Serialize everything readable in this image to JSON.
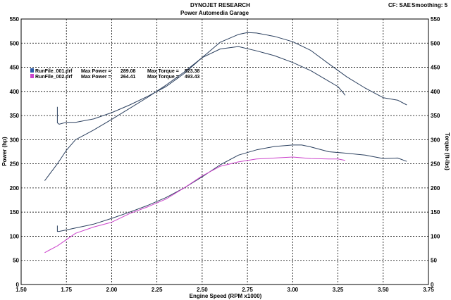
{
  "header": {
    "title": "DYNOJET RESEARCH",
    "subtitle": "Power Automedia Garage",
    "correction": "CF: SAE",
    "smoothing": "Smoothing: 5"
  },
  "chart_data": {
    "type": "line",
    "xlabel": "Engine Speed (RPM x1000)",
    "ylabel_left": "Power (hp)",
    "ylabel_right": "Torque (ft-lbs)",
    "xlim": [
      1.5,
      3.75
    ],
    "ylim": [
      0,
      550
    ],
    "xticks": [
      "1.50",
      "1.75",
      "2.00",
      "2.25",
      "2.50",
      "2.75",
      "3.00",
      "3.25",
      "3.50",
      "3.75"
    ],
    "yticks": [
      "0",
      "50",
      "100",
      "150",
      "200",
      "250",
      "300",
      "350",
      "400",
      "450",
      "500",
      "550"
    ],
    "grid": true,
    "legend_position": "top-left",
    "legend": [
      {
        "file": "RunFile_001.drf",
        "power_label": "Max Power =",
        "power": "289.08",
        "torque_label": "Max Torque =",
        "torque": "523.38",
        "color": "#2a3f5e"
      },
      {
        "file": "RunFile_002.drf",
        "power_label": "Max Power =",
        "power": "264.41",
        "torque_label": "Max Torque =",
        "torque": "493.43",
        "color": "#cc44cc"
      }
    ],
    "series": [
      {
        "name": "RunFile_001.drf",
        "measure": "Torque",
        "color": "#2a3f5e",
        "x": [
          1.7,
          1.7,
          1.71,
          1.75,
          1.8,
          1.9,
          2.0,
          2.1,
          2.2,
          2.3,
          2.4,
          2.5,
          2.6,
          2.7,
          2.75,
          2.8,
          2.9,
          3.0,
          3.1,
          3.2,
          3.3,
          3.4,
          3.5,
          3.58,
          3.63
        ],
        "y": [
          368,
          335,
          332,
          336,
          336,
          343,
          356,
          372,
          390,
          410,
          437,
          470,
          502,
          518,
          522,
          521,
          514,
          503,
          485,
          457,
          430,
          407,
          387,
          382,
          372
        ]
      },
      {
        "name": "RunFile_002.drf",
        "measure": "Torque",
        "color": "#2a3f5e",
        "x": [
          1.63,
          1.65,
          1.7,
          1.75,
          1.8,
          1.9,
          2.0,
          2.1,
          2.2,
          2.3,
          2.4,
          2.5,
          2.6,
          2.7,
          2.8,
          2.9,
          3.0,
          3.1,
          3.2,
          3.25,
          3.28,
          3.29
        ],
        "y": [
          215,
          225,
          250,
          278,
          300,
          320,
          342,
          365,
          388,
          413,
          440,
          470,
          488,
          493,
          484,
          474,
          460,
          443,
          421,
          410,
          397,
          392
        ]
      },
      {
        "name": "RunFile_001.drf",
        "measure": "Power",
        "color": "#2a3f5e",
        "x": [
          1.7,
          1.7,
          1.71,
          1.75,
          1.8,
          1.9,
          2.0,
          2.1,
          2.2,
          2.3,
          2.4,
          2.5,
          2.6,
          2.7,
          2.8,
          2.9,
          3.0,
          3.05,
          3.1,
          3.2,
          3.3,
          3.4,
          3.5,
          3.58,
          3.63
        ],
        "y": [
          122,
          110,
          110,
          113,
          117,
          125,
          137,
          150,
          164,
          180,
          200,
          223,
          248,
          268,
          279,
          286,
          289,
          289,
          285,
          275,
          272,
          268,
          261,
          262,
          255
        ]
      },
      {
        "name": "RunFile_002.drf",
        "measure": "Power",
        "color": "#cc44cc",
        "x": [
          1.63,
          1.65,
          1.7,
          1.75,
          1.8,
          1.9,
          2.0,
          2.1,
          2.2,
          2.3,
          2.4,
          2.5,
          2.6,
          2.7,
          2.8,
          2.9,
          3.0,
          3.1,
          3.2,
          3.25,
          3.29
        ],
        "y": [
          66,
          70,
          80,
          93,
          106,
          119,
          129,
          147,
          161,
          177,
          200,
          225,
          245,
          254,
          260,
          262,
          264,
          261,
          260,
          260,
          257
        ]
      }
    ]
  }
}
